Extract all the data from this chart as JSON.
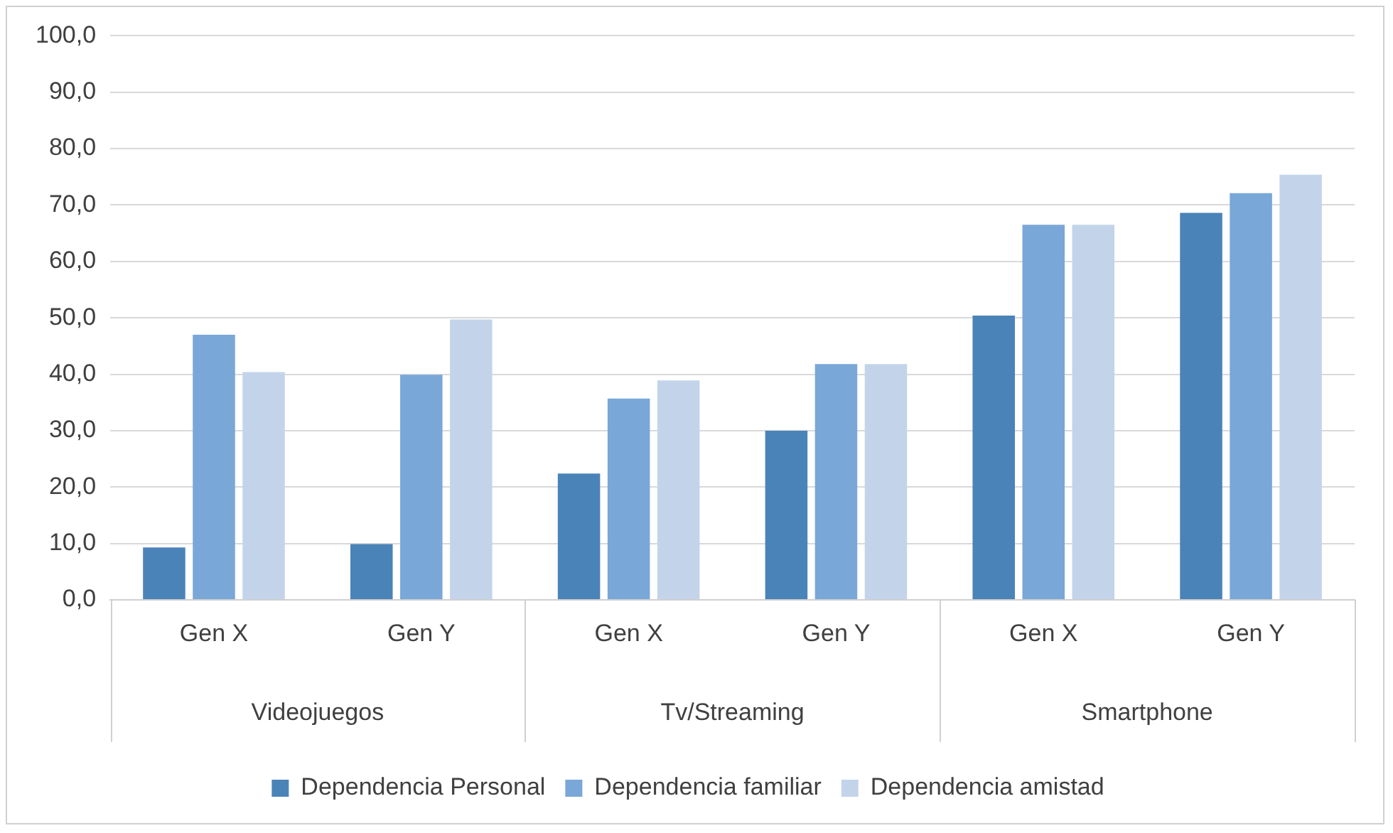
{
  "chart_data": {
    "type": "bar",
    "categories": [
      "Gen X",
      "Gen Y",
      "Gen X",
      "Gen Y",
      "Gen X",
      "Gen Y"
    ],
    "annotations": [
      "Videojuegos",
      "Tv/Streaming",
      "Smartphone"
    ],
    "series": [
      {
        "name": "Dependencia Personal",
        "color": "#4a83b8",
        "values": [
          9.3,
          9.9,
          22.4,
          30.0,
          50.4,
          68.6
        ]
      },
      {
        "name": "Dependencia familiar",
        "color": "#79a7d8",
        "values": [
          47.0,
          39.9,
          35.7,
          41.8,
          66.5,
          72.1
        ]
      },
      {
        "name": "Dependencia amistad",
        "color": "#c3d4ea",
        "values": [
          40.4,
          49.7,
          38.9,
          41.8,
          66.5,
          75.4
        ]
      }
    ],
    "ylim": [
      0,
      100
    ],
    "yticks": [
      {
        "value": 0,
        "label": "0,0"
      },
      {
        "value": 10,
        "label": "10,0"
      },
      {
        "value": 20,
        "label": "20,0"
      },
      {
        "value": 30,
        "label": "30,0"
      },
      {
        "value": 40,
        "label": "40,0"
      },
      {
        "value": 50,
        "label": "50,0"
      },
      {
        "value": 60,
        "label": "60,0"
      },
      {
        "value": 70,
        "label": "70,0"
      },
      {
        "value": 80,
        "label": "80,0"
      },
      {
        "value": 90,
        "label": "90,0"
      },
      {
        "value": 100,
        "label": "100,0"
      }
    ],
    "grid": "y",
    "legend": "bottom"
  }
}
